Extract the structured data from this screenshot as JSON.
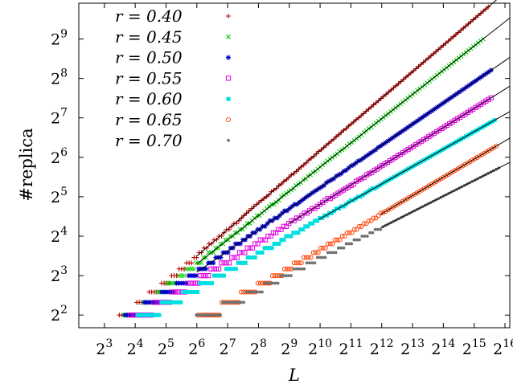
{
  "chart_data": {
    "type": "scatter",
    "xlabel": "L",
    "ylabel": "#replica",
    "x_scale": "log2",
    "y_scale": "log2",
    "xlim": [
      4.5,
      73000
    ],
    "ylim": [
      3.2,
      960
    ],
    "x_ticks": [
      {
        "base": "2",
        "exp": "3",
        "value": 8
      },
      {
        "base": "2",
        "exp": "4",
        "value": 16
      },
      {
        "base": "2",
        "exp": "5",
        "value": 32
      },
      {
        "base": "2",
        "exp": "6",
        "value": 64
      },
      {
        "base": "2",
        "exp": "7",
        "value": 128
      },
      {
        "base": "2",
        "exp": "8",
        "value": 256
      },
      {
        "base": "2",
        "exp": "9",
        "value": 512
      },
      {
        "base": "2",
        "exp": "10",
        "value": 1024
      },
      {
        "base": "2",
        "exp": "11",
        "value": 2048
      },
      {
        "base": "2",
        "exp": "12",
        "value": 4096
      },
      {
        "base": "2",
        "exp": "13",
        "value": 8192
      },
      {
        "base": "2",
        "exp": "14",
        "value": 16384
      },
      {
        "base": "2",
        "exp": "15",
        "value": 32768
      },
      {
        "base": "2",
        "exp": "16",
        "value": 65536
      }
    ],
    "y_ticks": [
      {
        "base": "2",
        "exp": "2",
        "value": 4
      },
      {
        "base": "2",
        "exp": "3",
        "value": 8
      },
      {
        "base": "2",
        "exp": "4",
        "value": 16
      },
      {
        "base": "2",
        "exp": "5",
        "value": 32
      },
      {
        "base": "2",
        "exp": "6",
        "value": 64
      },
      {
        "base": "2",
        "exp": "7",
        "value": 128
      },
      {
        "base": "2",
        "exp": "8",
        "value": 256
      },
      {
        "base": "2",
        "exp": "9",
        "value": 512
      }
    ],
    "legend_position": "top-left",
    "grid": false,
    "series": [
      {
        "name": "r = 0.40",
        "marker": "plus",
        "color": "#c00000",
        "x_min": 10,
        "x_max": 45000,
        "fit_y_at": [
          [
            64,
            11.3
          ],
          [
            45000,
            900
          ]
        ]
      },
      {
        "name": "r = 0.45",
        "marker": "cross",
        "color": "#00d000",
        "x_min": 11,
        "x_max": 40000,
        "fit_y_at": [
          [
            64,
            9.8
          ],
          [
            40000,
            512
          ]
        ]
      },
      {
        "name": "r = 0.50",
        "marker": "star",
        "color": "#0000cc",
        "x_min": 12,
        "x_max": 48000,
        "fit_y_at": [
          [
            64,
            8.5
          ],
          [
            48000,
            296
          ]
        ]
      },
      {
        "name": "r = 0.55",
        "marker": "box",
        "color": "#e000e0",
        "x_min": 7.6,
        "x_max": 48000,
        "fit_y_at": [
          [
            500,
            19.8
          ],
          [
            48000,
            182
          ]
        ]
      },
      {
        "name": "r = 0.60",
        "marker": "filled-box",
        "color": "#00e0e0",
        "x_min": 16,
        "x_max": 52000,
        "fit_y_at": [
          [
            1000,
            21.5
          ],
          [
            52000,
            123
          ]
        ]
      },
      {
        "name": "r = 0.65",
        "marker": "circle",
        "color": "#ff4000",
        "x_min": 16,
        "x_max": 54000,
        "fit_y_at": [
          [
            4000,
            23.5
          ],
          [
            54000,
            78
          ]
        ]
      },
      {
        "name": "r = 0.70",
        "marker": "dot",
        "color": "#707070",
        "x_min": 8,
        "x_max": 57000,
        "fit_y_at": [
          [
            4000,
            18.5
          ],
          [
            57000,
            53
          ]
        ]
      }
    ]
  }
}
